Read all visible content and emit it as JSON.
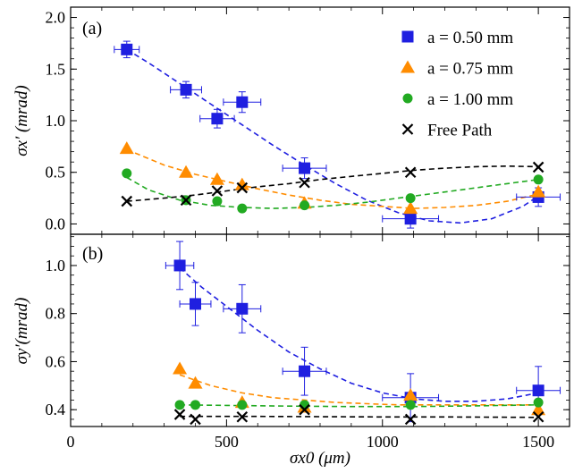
{
  "chart_data": [
    {
      "type": "scatter",
      "panel_label": "(a)",
      "ylabel": "σx′ (mrad)",
      "xlabel": "",
      "xlim": [
        0,
        1600
      ],
      "ylim": [
        -0.1,
        2.1
      ],
      "xticks": [
        0,
        500,
        1000,
        1500
      ],
      "yticks": [
        0.0,
        0.5,
        1.0,
        1.5,
        2.0
      ],
      "ytick_labels": [
        "0.0",
        "0.5",
        "1.0",
        "1.5",
        "2.0"
      ],
      "legend_placement": "top-right",
      "series": [
        {
          "name": "a = 0.50 mm",
          "marker": "square",
          "color": "#1f1fe0",
          "points": [
            {
              "x": 180,
              "y": 1.69,
              "xerr": 40,
              "yerr": 0.08
            },
            {
              "x": 370,
              "y": 1.3,
              "xerr": 50,
              "yerr": 0.08
            },
            {
              "x": 470,
              "y": 1.02,
              "xerr": 55,
              "yerr": 0.09
            },
            {
              "x": 550,
              "y": 1.18,
              "xerr": 60,
              "yerr": 0.1
            },
            {
              "x": 750,
              "y": 0.54,
              "xerr": 70,
              "yerr": 0.1
            },
            {
              "x": 1090,
              "y": 0.05,
              "xerr": 90,
              "yerr": 0.09
            },
            {
              "x": 1500,
              "y": 0.26,
              "xerr": 70,
              "yerr": 0.09
            }
          ],
          "fit": [
            [
              180,
              1.69
            ],
            [
              250,
              1.56
            ],
            [
              350,
              1.36
            ],
            [
              450,
              1.16
            ],
            [
              550,
              0.96
            ],
            [
              650,
              0.76
            ],
            [
              750,
              0.57
            ],
            [
              850,
              0.39
            ],
            [
              950,
              0.23
            ],
            [
              1050,
              0.11
            ],
            [
              1150,
              0.03
            ],
            [
              1250,
              0.01
            ],
            [
              1350,
              0.05
            ],
            [
              1450,
              0.17
            ],
            [
              1500,
              0.27
            ]
          ]
        },
        {
          "name": "a = 0.75 mm",
          "marker": "triangle",
          "color": "#ff8c00",
          "points": [
            {
              "x": 180,
              "y": 0.73
            },
            {
              "x": 370,
              "y": 0.5
            },
            {
              "x": 470,
              "y": 0.43
            },
            {
              "x": 550,
              "y": 0.38
            },
            {
              "x": 750,
              "y": 0.2
            },
            {
              "x": 1090,
              "y": 0.15
            },
            {
              "x": 1500,
              "y": 0.31
            }
          ],
          "fit": [
            [
              180,
              0.72
            ],
            [
              300,
              0.57
            ],
            [
              400,
              0.48
            ],
            [
              500,
              0.41
            ],
            [
              600,
              0.34
            ],
            [
              700,
              0.28
            ],
            [
              800,
              0.23
            ],
            [
              900,
              0.19
            ],
            [
              1000,
              0.17
            ],
            [
              1100,
              0.15
            ],
            [
              1200,
              0.16
            ],
            [
              1300,
              0.18
            ],
            [
              1400,
              0.22
            ],
            [
              1500,
              0.29
            ]
          ]
        },
        {
          "name": "a = 1.00 mm",
          "marker": "circle",
          "color": "#22aa22",
          "points": [
            {
              "x": 180,
              "y": 0.49
            },
            {
              "x": 370,
              "y": 0.23
            },
            {
              "x": 470,
              "y": 0.22
            },
            {
              "x": 550,
              "y": 0.15
            },
            {
              "x": 750,
              "y": 0.18
            },
            {
              "x": 1090,
              "y": 0.25
            },
            {
              "x": 1500,
              "y": 0.43
            }
          ],
          "fit": [
            [
              180,
              0.45
            ],
            [
              250,
              0.33
            ],
            [
              350,
              0.23
            ],
            [
              450,
              0.18
            ],
            [
              550,
              0.16
            ],
            [
              650,
              0.15
            ],
            [
              750,
              0.16
            ],
            [
              850,
              0.18
            ],
            [
              950,
              0.21
            ],
            [
              1050,
              0.25
            ],
            [
              1150,
              0.29
            ],
            [
              1250,
              0.33
            ],
            [
              1350,
              0.37
            ],
            [
              1500,
              0.43
            ]
          ]
        },
        {
          "name": "Free Path",
          "marker": "cross",
          "color": "#000000",
          "points": [
            {
              "x": 180,
              "y": 0.22
            },
            {
              "x": 370,
              "y": 0.23
            },
            {
              "x": 470,
              "y": 0.32
            },
            {
              "x": 550,
              "y": 0.35
            },
            {
              "x": 750,
              "y": 0.4
            },
            {
              "x": 1090,
              "y": 0.5
            },
            {
              "x": 1500,
              "y": 0.55
            }
          ],
          "fit": [
            [
              180,
              0.22
            ],
            [
              300,
              0.25
            ],
            [
              400,
              0.28
            ],
            [
              500,
              0.32
            ],
            [
              600,
              0.36
            ],
            [
              700,
              0.39
            ],
            [
              800,
              0.43
            ],
            [
              900,
              0.46
            ],
            [
              1000,
              0.49
            ],
            [
              1100,
              0.52
            ],
            [
              1200,
              0.54
            ],
            [
              1300,
              0.555
            ],
            [
              1400,
              0.56
            ],
            [
              1500,
              0.555
            ]
          ]
        }
      ]
    },
    {
      "type": "scatter",
      "panel_label": "(b)",
      "ylabel": "σy′(mrad)",
      "xlabel": "σx0 (μm)",
      "xlim": [
        0,
        1600
      ],
      "ylim": [
        0.33,
        1.13
      ],
      "xticks": [
        0,
        500,
        1000,
        1500
      ],
      "xtick_labels": [
        "0",
        "500",
        "1000",
        "1500"
      ],
      "yticks": [
        0.4,
        0.6,
        0.8,
        1.0
      ],
      "ytick_labels": [
        "0.4",
        "0.6",
        "0.8",
        "1.0"
      ],
      "series": [
        {
          "name": "a = 0.50 mm",
          "marker": "square",
          "color": "#1f1fe0",
          "points": [
            {
              "x": 350,
              "y": 1.0,
              "xerr": 45,
              "yerr": 0.1
            },
            {
              "x": 400,
              "y": 0.84,
              "xerr": 50,
              "yerr": 0.09
            },
            {
              "x": 550,
              "y": 0.82,
              "xerr": 60,
              "yerr": 0.1
            },
            {
              "x": 750,
              "y": 0.56,
              "xerr": 70,
              "yerr": 0.1
            },
            {
              "x": 1090,
              "y": 0.45,
              "xerr": 90,
              "yerr": 0.1
            },
            {
              "x": 1500,
              "y": 0.48,
              "xerr": 70,
              "yerr": 0.1
            }
          ],
          "fit": [
            [
              350,
              0.99
            ],
            [
              420,
              0.91
            ],
            [
              500,
              0.83
            ],
            [
              600,
              0.73
            ],
            [
              700,
              0.64
            ],
            [
              800,
              0.57
            ],
            [
              900,
              0.51
            ],
            [
              1000,
              0.47
            ],
            [
              1100,
              0.445
            ],
            [
              1200,
              0.435
            ],
            [
              1300,
              0.435
            ],
            [
              1400,
              0.445
            ],
            [
              1500,
              0.47
            ]
          ]
        },
        {
          "name": "a = 0.75 mm",
          "marker": "triangle",
          "color": "#ff8c00",
          "points": [
            {
              "x": 350,
              "y": 0.57
            },
            {
              "x": 400,
              "y": 0.51
            },
            {
              "x": 550,
              "y": 0.43
            },
            {
              "x": 750,
              "y": 0.41
            },
            {
              "x": 1090,
              "y": 0.46
            },
            {
              "x": 1500,
              "y": 0.4
            }
          ],
          "fit": [
            [
              350,
              0.545
            ],
            [
              450,
              0.5
            ],
            [
              550,
              0.47
            ],
            [
              650,
              0.45
            ],
            [
              750,
              0.44
            ],
            [
              850,
              0.43
            ],
            [
              950,
              0.425
            ],
            [
              1050,
              0.42
            ],
            [
              1150,
              0.42
            ],
            [
              1250,
              0.42
            ],
            [
              1350,
              0.42
            ],
            [
              1500,
              0.42
            ]
          ]
        },
        {
          "name": "a = 1.00 mm",
          "marker": "circle",
          "color": "#22aa22",
          "points": [
            {
              "x": 350,
              "y": 0.42
            },
            {
              "x": 400,
              "y": 0.42
            },
            {
              "x": 550,
              "y": 0.42
            },
            {
              "x": 750,
              "y": 0.42
            },
            {
              "x": 1090,
              "y": 0.42
            },
            {
              "x": 1500,
              "y": 0.43
            }
          ],
          "fit": [
            [
              350,
              0.42
            ],
            [
              500,
              0.418
            ],
            [
              700,
              0.415
            ],
            [
              900,
              0.413
            ],
            [
              1100,
              0.413
            ],
            [
              1300,
              0.416
            ],
            [
              1500,
              0.42
            ]
          ]
        },
        {
          "name": "Free Path",
          "marker": "cross",
          "color": "#000000",
          "points": [
            {
              "x": 350,
              "y": 0.38
            },
            {
              "x": 400,
              "y": 0.36
            },
            {
              "x": 550,
              "y": 0.37
            },
            {
              "x": 750,
              "y": 0.4
            },
            {
              "x": 1090,
              "y": 0.36
            },
            {
              "x": 1500,
              "y": 0.37
            }
          ],
          "fit": [
            [
              350,
              0.372
            ],
            [
              600,
              0.372
            ],
            [
              800,
              0.371
            ],
            [
              1000,
              0.37
            ],
            [
              1200,
              0.37
            ],
            [
              1500,
              0.368
            ]
          ]
        }
      ]
    }
  ]
}
